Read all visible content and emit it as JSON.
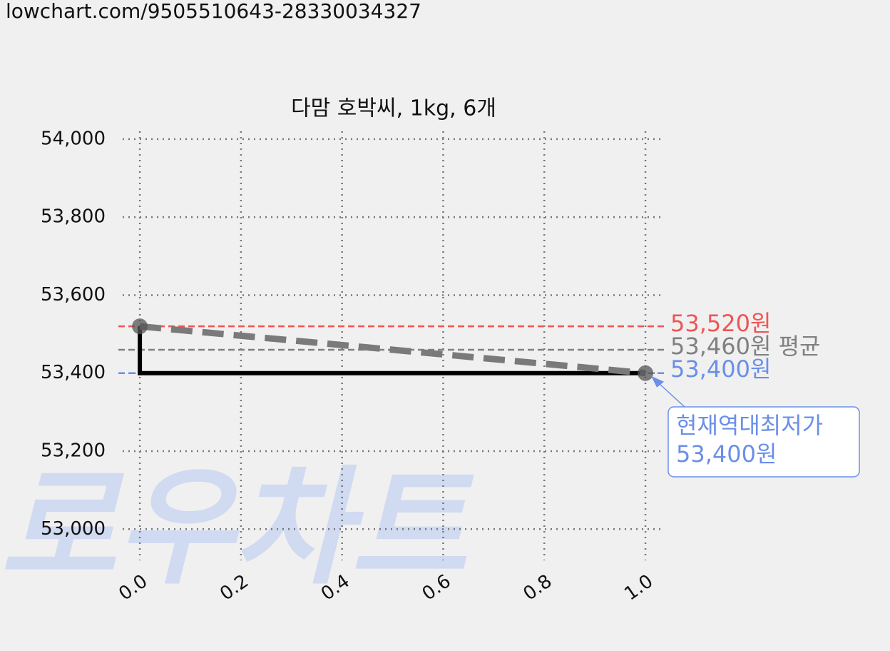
{
  "header": {
    "url": "lowchart.com/9505510643-28330034327"
  },
  "watermark": "로우차트",
  "chart_data": {
    "type": "line",
    "title": "다맘 호박씨, 1kg, 6개",
    "x": [
      0,
      1
    ],
    "series": [
      {
        "color": "#000000",
        "drawstyle": "steps-pre",
        "values": [
          53520,
          53400
        ]
      },
      {
        "color": "#7a7a7a",
        "linestyle": "dashed",
        "marker": true,
        "values": [
          53520,
          53400
        ]
      }
    ],
    "hlines": [
      {
        "value": 53520,
        "label": "53,520원",
        "color": "#f05454"
      },
      {
        "value": 53460,
        "label": "53,460원 평균",
        "color": "#808080"
      },
      {
        "value": 53400,
        "label": "53,400원",
        "color": "#6a8fe8"
      }
    ],
    "annotation": {
      "lines": [
        "현재역대최저가",
        "53,400원"
      ],
      "x": 1,
      "y": 53400,
      "color": "#6a8fe8"
    },
    "xlim": [
      -0.034,
      1.038
    ],
    "ylim": [
      52920,
      54020
    ],
    "xticks": [
      {
        "value": 0,
        "label": "0.0"
      },
      0.2,
      0.4,
      0.6,
      0.8,
      {
        "value": 1,
        "label": "1.0"
      }
    ],
    "yticks": [
      {
        "value": 53000,
        "label": "53,000"
      },
      {
        "value": 53200,
        "label": "53,200"
      },
      {
        "value": 53400,
        "label": "53,400"
      },
      {
        "value": 53600,
        "label": "53,600"
      },
      {
        "value": 53800,
        "label": "53,800"
      },
      {
        "value": 54000,
        "label": "54,000"
      }
    ],
    "grid": true
  }
}
